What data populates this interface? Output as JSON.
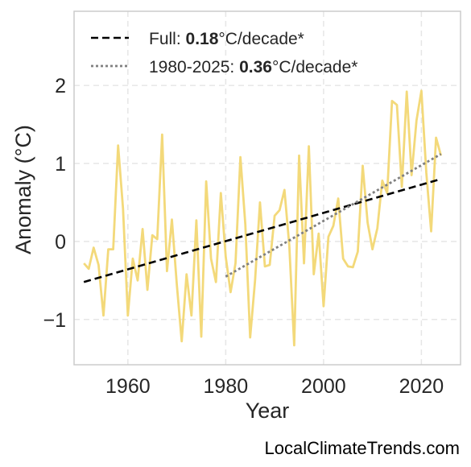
{
  "watermark": "LocalClimateTrends.com",
  "colors": {
    "series": "#f3d97a",
    "trend_full": "#000000",
    "trend_recent": "#808080",
    "grid": "#e6e6e6",
    "frame": "#cccccc"
  },
  "legend": {
    "full": {
      "prefix": "Full: ",
      "value": "0.18",
      "suffix": "°C/decade*"
    },
    "recent": {
      "prefix": "1980-2025: ",
      "value": "0.36",
      "suffix": "°C/decade*"
    }
  },
  "chart_data": {
    "type": "line",
    "title": "",
    "xlabel": "Year",
    "ylabel": "Anomaly (°C)",
    "xlim": [
      1949,
      2028
    ],
    "ylim": [
      -1.58,
      2.95
    ],
    "xticks": [
      1960,
      1980,
      2000,
      2020
    ],
    "yticks": [
      -1,
      0,
      1,
      2
    ],
    "ytick_labels": [
      "−1",
      "0",
      "1",
      "2"
    ],
    "grid": true,
    "legend_position": "top-left",
    "series": [
      {
        "x": [
          1951,
          1952,
          1953,
          1954,
          1955,
          1956,
          1957,
          1958,
          1959,
          1960,
          1961,
          1962,
          1963,
          1964,
          1965,
          1966,
          1967,
          1968,
          1969,
          1970,
          1971,
          1972,
          1973,
          1974,
          1975,
          1976,
          1977,
          1978,
          1979,
          1980,
          1981,
          1982,
          1983,
          1984,
          1985,
          1986,
          1987,
          1988,
          1989,
          1990,
          1991,
          1992,
          1993,
          1994,
          1995,
          1996,
          1997,
          1998,
          1999,
          2000,
          2001,
          2002,
          2003,
          2004,
          2005,
          2006,
          2007,
          2008,
          2009,
          2010,
          2011,
          2012,
          2013,
          2014,
          2015,
          2016,
          2017,
          2018,
          2019,
          2020,
          2021,
          2022,
          2023,
          2024
        ],
        "y": [
          -0.28,
          -0.35,
          -0.08,
          -0.3,
          -0.95,
          -0.1,
          -0.1,
          1.23,
          0.42,
          -0.95,
          -0.22,
          -0.5,
          0.16,
          -0.62,
          0.08,
          0.03,
          1.37,
          -0.38,
          0.28,
          -0.55,
          -1.28,
          -0.42,
          -0.95,
          0.27,
          -1.22,
          0.77,
          -0.22,
          -0.52,
          0.62,
          -0.2,
          -0.65,
          -0.28,
          1.08,
          0.22,
          -1.23,
          -0.5,
          0.5,
          -0.32,
          -0.3,
          0.33,
          0.4,
          0.66,
          -0.05,
          -1.33,
          1.1,
          -0.28,
          1.22,
          -0.42,
          0.1,
          -0.83,
          0.06,
          0.2,
          0.55,
          -0.22,
          -0.32,
          -0.33,
          -0.13,
          0.97,
          0.24,
          -0.1,
          0.17,
          0.78,
          0.62,
          1.8,
          1.75,
          0.7,
          1.92,
          0.85,
          1.55,
          1.93,
          0.88,
          0.13,
          1.33,
          1.1
        ]
      },
      {
        "name": "Full: 0.18°C/decade*",
        "style": "dashed",
        "x": [
          1951,
          2024
        ],
        "y": [
          -0.52,
          0.8
        ]
      },
      {
        "name": "1980-2025: 0.36°C/decade*",
        "style": "dotted",
        "x": [
          1980,
          2024
        ],
        "y": [
          -0.45,
          1.12
        ]
      }
    ]
  }
}
